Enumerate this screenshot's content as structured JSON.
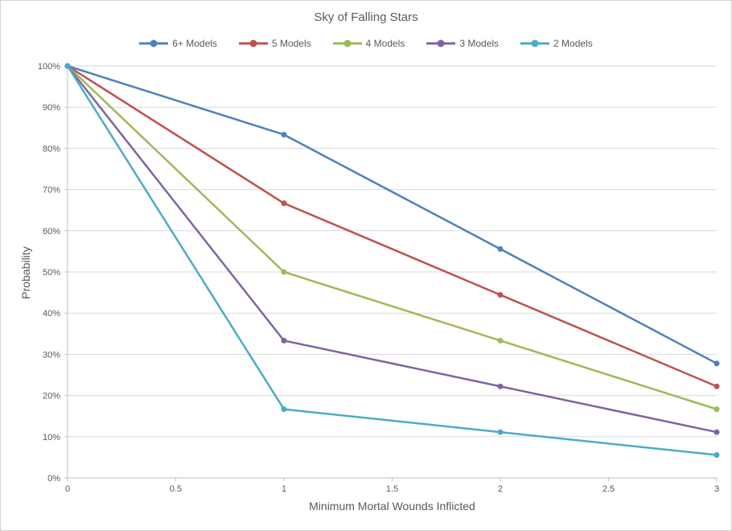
{
  "chart_data": {
    "type": "line",
    "title": "Sky of Falling Stars",
    "xlabel": "Minimum Mortal Wounds Inflicted",
    "ylabel": "Probability",
    "x": [
      0,
      1,
      2,
      3
    ],
    "xlim": [
      0,
      3
    ],
    "ylim": [
      0,
      100
    ],
    "x_ticks": [
      0,
      0.5,
      1,
      1.5,
      2,
      2.5,
      3
    ],
    "x_tick_labels": [
      "0",
      "0.5",
      "1",
      "1.5",
      "2",
      "2.5",
      "3"
    ],
    "y_ticks": [
      0,
      10,
      20,
      30,
      40,
      50,
      60,
      70,
      80,
      90,
      100
    ],
    "y_tick_labels": [
      "0%",
      "10%",
      "20%",
      "30%",
      "40%",
      "50%",
      "60%",
      "70%",
      "80%",
      "90%",
      "100%"
    ],
    "grid": "horizontal",
    "legend_position": "top",
    "series": [
      {
        "name": "6+ Models",
        "color": "#4F81BD",
        "values": [
          100,
          83.33,
          55.56,
          27.78
        ]
      },
      {
        "name": "5 Models",
        "color": "#C0504D",
        "values": [
          100,
          66.67,
          44.44,
          22.22
        ]
      },
      {
        "name": "4 Models",
        "color": "#9BBB59",
        "values": [
          100,
          50.0,
          33.33,
          16.67
        ]
      },
      {
        "name": "3 Models",
        "color": "#8064A2",
        "values": [
          100,
          33.33,
          22.22,
          11.11
        ]
      },
      {
        "name": "2 Models",
        "color": "#4BACC6",
        "values": [
          100,
          16.67,
          11.11,
          5.56
        ]
      }
    ],
    "colors": {
      "text": "#595959",
      "gridline": "#D9D9D9",
      "axis": "#BFBFBF",
      "background": "#FFFFFF",
      "frame_border": "#D3D3D3"
    }
  }
}
